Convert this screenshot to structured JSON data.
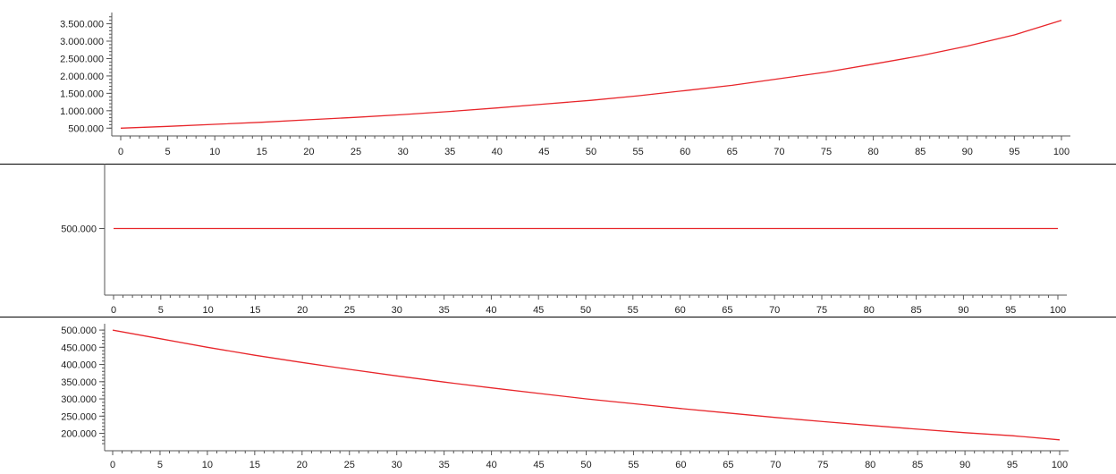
{
  "colors": {
    "line": "#e8262b",
    "axis": "#555555",
    "background": "#ffffff"
  },
  "chart_data": [
    {
      "type": "line",
      "xlim": [
        0,
        100
      ],
      "ylim": [
        430000,
        3720000
      ],
      "x_ticks": [
        "0",
        "5",
        "10",
        "15",
        "20",
        "25",
        "30",
        "35",
        "40",
        "45",
        "50",
        "55",
        "60",
        "65",
        "70",
        "75",
        "80",
        "85",
        "90",
        "95",
        "100"
      ],
      "y_ticks": [
        {
          "value": 500000,
          "label": "500.000"
        },
        {
          "value": 1000000,
          "label": "1.000.000"
        },
        {
          "value": 1500000,
          "label": "1.500.000"
        },
        {
          "value": 2000000,
          "label": "2.000.000"
        },
        {
          "value": 2500000,
          "label": "2.500.000"
        },
        {
          "value": 3000000,
          "label": "3.000.000"
        },
        {
          "value": 3500000,
          "label": "3.500.000"
        }
      ],
      "series": [
        {
          "x": [
            0,
            5,
            10,
            15,
            20,
            25,
            30,
            35,
            40,
            45,
            50,
            55,
            60,
            65,
            70,
            75,
            80,
            85,
            90,
            95,
            100
          ],
          "values": [
            500000,
            550000,
            610000,
            670000,
            740000,
            810000,
            890000,
            980000,
            1080000,
            1190000,
            1300000,
            1430000,
            1580000,
            1730000,
            1920000,
            2110000,
            2340000,
            2580000,
            2860000,
            3180000,
            3600000
          ]
        }
      ]
    },
    {
      "type": "line",
      "xlim": [
        0,
        100
      ],
      "ylim": [
        0,
        1000000
      ],
      "x_ticks": [
        "0",
        "5",
        "10",
        "15",
        "20",
        "25",
        "30",
        "35",
        "40",
        "45",
        "50",
        "55",
        "60",
        "65",
        "70",
        "75",
        "80",
        "85",
        "90",
        "95",
        "100"
      ],
      "y_ticks": [
        {
          "value": 500000,
          "label": "500.000"
        }
      ],
      "series": [
        {
          "x": [
            0,
            100
          ],
          "values": [
            500000,
            500000
          ]
        }
      ]
    },
    {
      "type": "line",
      "xlim": [
        0,
        100
      ],
      "ylim": [
        165000,
        508000
      ],
      "x_ticks": [
        "0",
        "5",
        "10",
        "15",
        "20",
        "25",
        "30",
        "35",
        "40",
        "45",
        "50",
        "55",
        "60",
        "65",
        "70",
        "75",
        "80",
        "85",
        "90",
        "95",
        "100"
      ],
      "y_ticks": [
        {
          "value": 200000,
          "label": "200.000"
        },
        {
          "value": 250000,
          "label": "250.000"
        },
        {
          "value": 300000,
          "label": "300.000"
        },
        {
          "value": 350000,
          "label": "350.000"
        },
        {
          "value": 400000,
          "label": "400.000"
        },
        {
          "value": 450000,
          "label": "450.000"
        },
        {
          "value": 500000,
          "label": "500.000"
        }
      ],
      "series": [
        {
          "x": [
            0,
            5,
            10,
            15,
            20,
            25,
            30,
            35,
            40,
            45,
            50,
            55,
            60,
            65,
            70,
            75,
            80,
            85,
            90,
            95,
            100
          ],
          "values": [
            500000,
            475000,
            450000,
            427000,
            406000,
            386000,
            367000,
            349000,
            332000,
            316000,
            300000,
            286000,
            272000,
            259000,
            246000,
            234000,
            223000,
            212000,
            202000,
            193000,
            181000
          ]
        }
      ]
    }
  ]
}
